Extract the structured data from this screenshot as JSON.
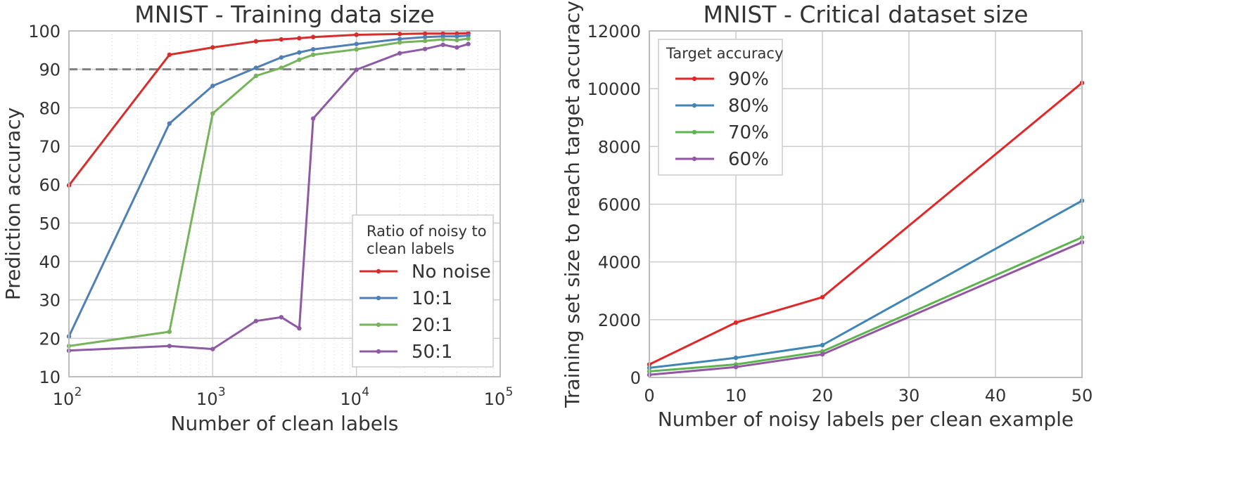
{
  "chart_data": [
    {
      "type": "line",
      "title": "MNIST - Training data size",
      "xlabel": "Number of clean labels",
      "ylabel": "Prediction accuracy",
      "xscale": "log",
      "xlim": [
        100,
        100000
      ],
      "ylim": [
        10,
        100
      ],
      "xtick_labels": [
        {
          "value": 100,
          "base": "10",
          "exp": "2"
        },
        {
          "value": 1000,
          "base": "10",
          "exp": "3"
        },
        {
          "value": 10000,
          "base": "10",
          "exp": "4"
        },
        {
          "value": 100000,
          "base": "10",
          "exp": "5"
        }
      ],
      "yticks": [
        10,
        20,
        30,
        40,
        50,
        60,
        70,
        80,
        90,
        100
      ],
      "grid": true,
      "reference_line": {
        "y": 90,
        "style": "dashed",
        "color": "#808080"
      },
      "legend": {
        "title": "Ratio of noisy to clean labels",
        "title_lines": [
          "Ratio of noisy to",
          "clean labels"
        ],
        "placement": "lower-right"
      },
      "series": [
        {
          "name": "No noise",
          "color": "#d62d2d",
          "x": [
            100,
            500,
            1000,
            2000,
            3000,
            4000,
            5000,
            10000,
            20000,
            30000,
            40000,
            50000,
            60000
          ],
          "y": [
            59.8,
            93.8,
            95.7,
            97.3,
            97.8,
            98.1,
            98.4,
            99.0,
            99.2,
            99.3,
            99.3,
            99.3,
            99.4
          ]
        },
        {
          "name": "10:1",
          "color": "#4f7fb5",
          "x": [
            100,
            500,
            1000,
            2000,
            3000,
            4000,
            5000,
            10000,
            20000,
            30000,
            40000,
            50000,
            60000
          ],
          "y": [
            20.5,
            75.9,
            85.7,
            90.4,
            93.1,
            94.4,
            95.2,
            96.6,
            97.9,
            98.4,
            98.6,
            98.6,
            98.8
          ]
        },
        {
          "name": "20:1",
          "color": "#76b35b",
          "x": [
            100,
            500,
            1000,
            2000,
            3000,
            4000,
            5000,
            10000,
            20000,
            30000,
            40000,
            50000,
            60000
          ],
          "y": [
            18.0,
            21.7,
            78.5,
            88.3,
            90.4,
            92.5,
            93.8,
            95.2,
            97.0,
            97.4,
            97.8,
            97.6,
            98.0
          ]
        },
        {
          "name": "50:1",
          "color": "#8d5aa3",
          "x": [
            100,
            500,
            1000,
            2000,
            3000,
            4000,
            5000,
            10000,
            20000,
            30000,
            40000,
            50000,
            60000
          ],
          "y": [
            16.8,
            18.0,
            17.2,
            24.5,
            25.5,
            22.6,
            77.2,
            89.9,
            94.2,
            95.3,
            96.4,
            95.7,
            96.6
          ]
        }
      ]
    },
    {
      "type": "line",
      "title": "MNIST - Critical dataset size",
      "xlabel": "Number of noisy labels per clean example",
      "ylabel": "Training set size to reach target accuracy",
      "xlim": [
        0,
        50
      ],
      "ylim": [
        0,
        12000
      ],
      "xticks": [
        0,
        10,
        20,
        30,
        40,
        50
      ],
      "yticks": [
        0,
        2000,
        4000,
        6000,
        8000,
        10000,
        12000
      ],
      "grid": true,
      "legend": {
        "title": "Target accuracy",
        "placement": "upper-left"
      },
      "series": [
        {
          "name": "90%",
          "color": "#e0282a",
          "x": [
            0,
            10,
            20,
            50
          ],
          "y": [
            450,
            1900,
            2780,
            10200
          ]
        },
        {
          "name": "80%",
          "color": "#3f86b6",
          "x": [
            0,
            10,
            20,
            50
          ],
          "y": [
            330,
            680,
            1120,
            6120
          ]
        },
        {
          "name": "70%",
          "color": "#5db44e",
          "x": [
            0,
            10,
            20,
            50
          ],
          "y": [
            210,
            450,
            900,
            4850
          ]
        },
        {
          "name": "60%",
          "color": "#9356a3",
          "x": [
            0,
            10,
            20,
            50
          ],
          "y": [
            90,
            360,
            800,
            4680
          ]
        }
      ]
    }
  ]
}
